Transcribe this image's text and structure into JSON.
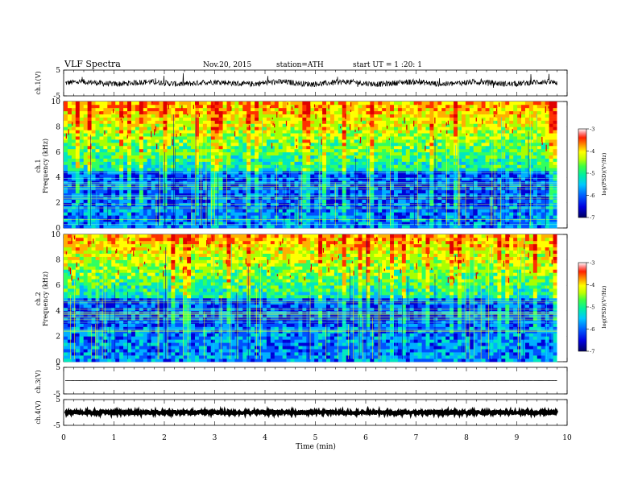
{
  "header": {
    "title": "VLF  Spectra",
    "date": "Nov.20, 2015",
    "station": "station=ATH",
    "start": "start  UT  =   1  :20: 1"
  },
  "colors": {
    "scale": [
      "#000080",
      "#0000d8",
      "#0050ff",
      "#00b0ff",
      "#00e8c0",
      "#30ff60",
      "#a8ff00",
      "#ffff00",
      "#ffb000",
      "#ff3000",
      "#e00000",
      "#ffffff"
    ]
  },
  "chart_data": [
    {
      "type": "line",
      "panel": "ch1-waveform",
      "ylabel": "ch.1(V)",
      "ylim": [
        -5,
        5
      ],
      "yticks": [
        "5",
        "-5"
      ]
    },
    {
      "type": "heatmap",
      "panel": "ch1-spectrogram",
      "ylabel": "ch.1",
      "ylabel2": "Frequency  (kHz)",
      "ylim": [
        0,
        10
      ],
      "yticks": [
        "10",
        "8",
        "6",
        "4",
        "2",
        "0"
      ],
      "colorbar": {
        "label": "log(PSD)(V²/Hz)",
        "range": [
          -7,
          -3
        ],
        "ticks": [
          "-3",
          "-4",
          "-5",
          "-6",
          "-7"
        ]
      },
      "quiet_bands_khz": [
        [
          1.8,
          4.5
        ]
      ]
    },
    {
      "type": "heatmap",
      "panel": "ch2-spectrogram",
      "ylabel": "ch.2",
      "ylabel2": "Frequency  (kHz)",
      "ylim": [
        0,
        10
      ],
      "yticks": [
        "10",
        "8",
        "6",
        "4",
        "2",
        "0"
      ],
      "colorbar": {
        "label": "log(PSD)(V²/Hz)",
        "range": [
          -7,
          -3
        ],
        "ticks": [
          "-3",
          "-4",
          "-5",
          "-6",
          "-7"
        ]
      },
      "quiet_bands_khz": [
        [
          2.8,
          5.0
        ]
      ]
    },
    {
      "type": "line",
      "panel": "ch3-waveform",
      "ylabel": "ch.3(V)",
      "ylim": [
        -5,
        5
      ],
      "yticks": [
        "5",
        "-5"
      ]
    },
    {
      "type": "line",
      "panel": "ch4-waveform",
      "ylabel": "ch.4(V)",
      "ylim": [
        -5,
        5
      ],
      "yticks": [
        "5",
        "-5"
      ]
    }
  ],
  "xaxis": {
    "label": "Time  (min)",
    "range": [
      0,
      10
    ],
    "data_end": 9.8,
    "ticks": [
      "0",
      "1",
      "2",
      "3",
      "4",
      "5",
      "6",
      "7",
      "8",
      "9",
      "10"
    ]
  }
}
